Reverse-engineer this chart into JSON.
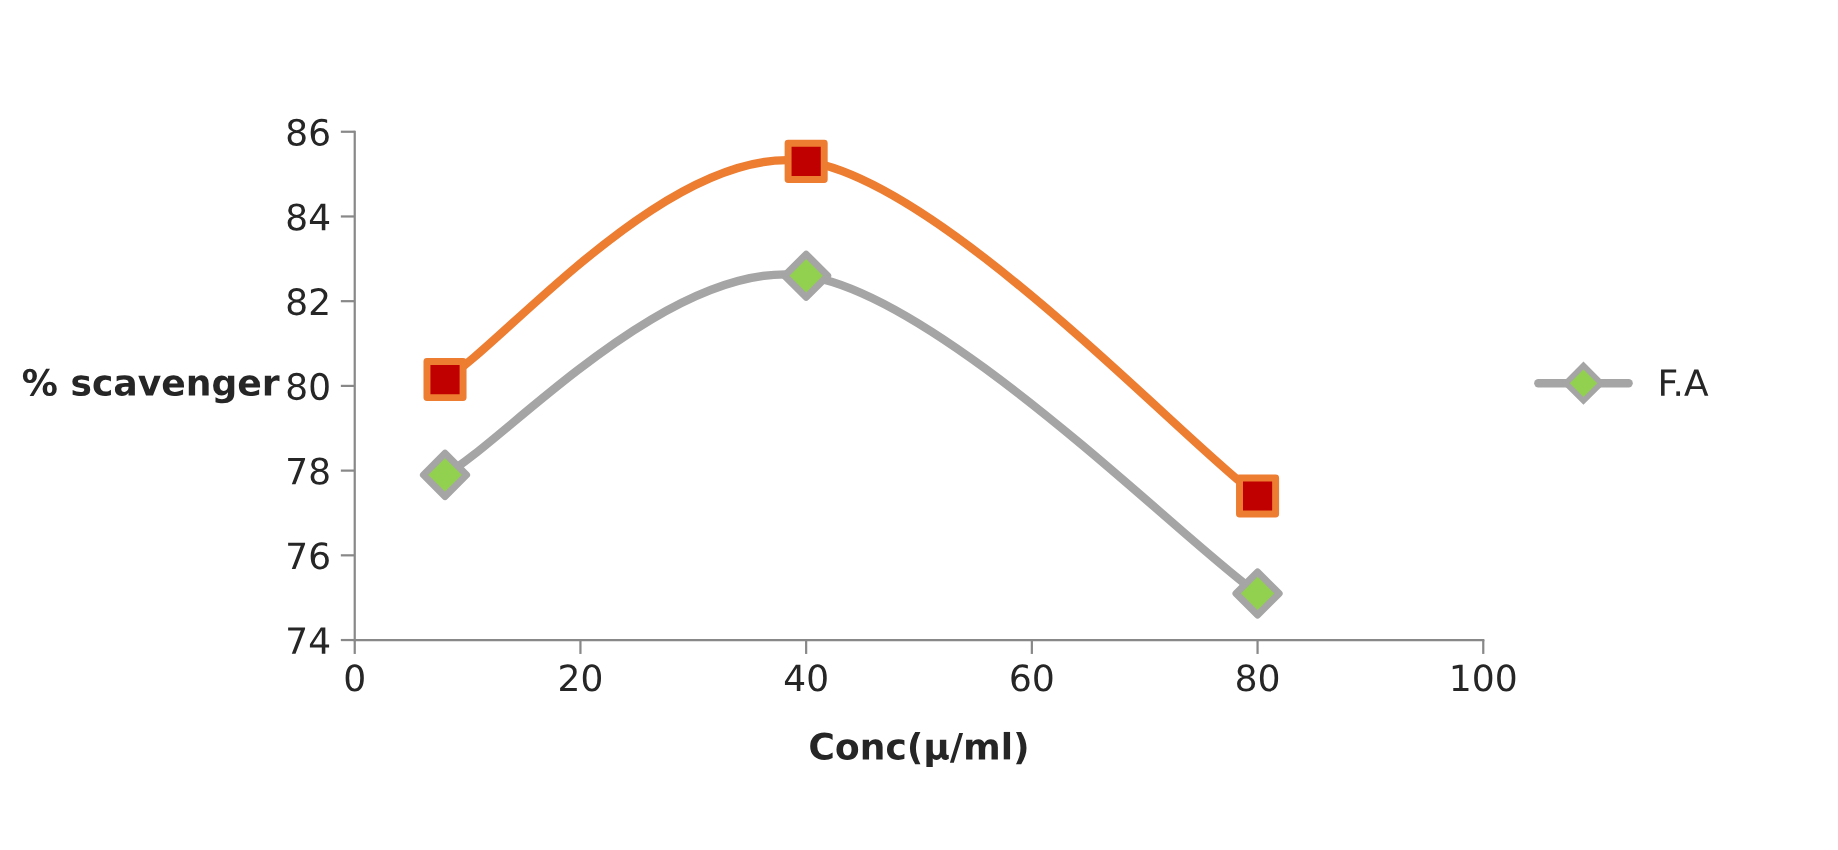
{
  "chart_data": {
    "type": "line",
    "xlabel": "Conc(μ/ml)",
    "ylabel": "% scavenger",
    "x": [
      8,
      40,
      80
    ],
    "series": [
      {
        "color": "#ed7d31",
        "marker": "square",
        "colors": [
          "#c00000",
          "#c00000",
          "#c00000"
        ],
        "values": [
          80.15,
          85.3,
          77.4
        ]
      },
      {
        "name": "F.A",
        "color": "#a5a5a5",
        "marker": "diamond",
        "colors": [
          "#92d050",
          "#92d050",
          "#92d050"
        ],
        "values": [
          77.9,
          82.6,
          75.1
        ]
      }
    ],
    "xlim": [
      0,
      100
    ],
    "xticks": [
      0,
      20,
      40,
      60,
      80,
      100
    ],
    "ylim": [
      74,
      86
    ],
    "yticks": [
      74,
      76,
      78,
      80,
      82,
      84,
      86
    ],
    "grid": false,
    "legend": "right",
    "line_style": "solid"
  }
}
